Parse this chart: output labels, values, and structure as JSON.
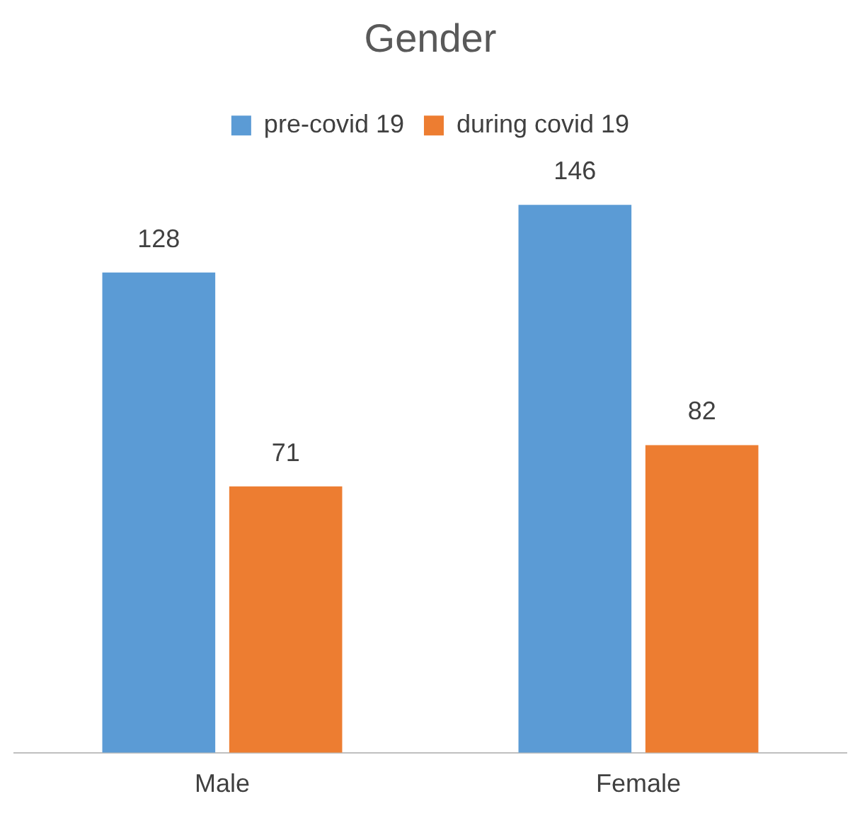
{
  "chart_data": {
    "type": "bar",
    "title": "Gender",
    "categories": [
      "Male",
      "Female"
    ],
    "series": [
      {
        "name": "pre-covid 19",
        "color": "#5b9bd5",
        "values": [
          128,
          146
        ]
      },
      {
        "name": "during covid 19",
        "color": "#ed7d31",
        "values": [
          71,
          82
        ]
      }
    ],
    "data_labels": true,
    "legend": "top",
    "grid": false
  }
}
